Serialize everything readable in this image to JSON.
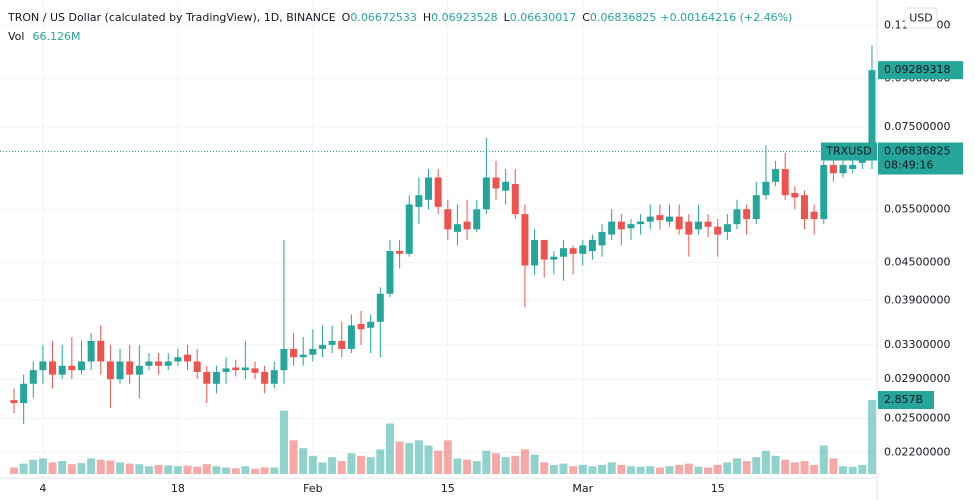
{
  "chart_data": {
    "type": "candlestick",
    "title": "TRON / US Dollar (calculated by TradingView), 1D, BINANCE",
    "ohlc_labels": [
      "O",
      "H",
      "L",
      "C"
    ],
    "ohlc_values": [
      0.06672533,
      0.06923528,
      0.06630017,
      0.06836825
    ],
    "change": "+0.00164216 (+2.46%)",
    "volume_title": "Vol",
    "volume_value": {
      "value": 66126000,
      "label": "66.126M"
    },
    "currency": "USD",
    "symbol": "TRXUSD",
    "last_price": 0.06836825,
    "countdown": "08:49:16",
    "marker_price": 0.09289318,
    "up_color": "#26a69a",
    "down_color": "#ef5350",
    "log_scale": true,
    "grid": true,
    "categories": [
      null,
      null,
      null,
      "4",
      null,
      null,
      null,
      null,
      null,
      null,
      null,
      null,
      null,
      null,
      null,
      null,
      null,
      "18",
      null,
      null,
      null,
      null,
      null,
      null,
      null,
      null,
      null,
      null,
      null,
      null,
      null,
      "Feb",
      null,
      null,
      null,
      null,
      null,
      null,
      null,
      null,
      null,
      null,
      null,
      null,
      null,
      "15",
      null,
      null,
      null,
      null,
      null,
      null,
      null,
      null,
      null,
      null,
      null,
      null,
      null,
      "Mar",
      null,
      null,
      null,
      null,
      null,
      null,
      null,
      null,
      null,
      null,
      null,
      null,
      null,
      "15",
      null,
      null,
      null,
      null,
      null,
      null,
      null,
      null,
      null,
      null,
      null,
      null,
      null,
      null,
      null,
      null
    ],
    "open": [
      0.0268,
      0.0265,
      0.0285,
      0.03,
      0.031,
      0.0295,
      0.0305,
      0.03,
      0.031,
      0.0335,
      0.031,
      0.029,
      0.031,
      0.0295,
      0.0305,
      0.031,
      0.0305,
      0.031,
      0.0318,
      0.031,
      0.0298,
      0.0285,
      0.0298,
      0.0303,
      0.03,
      0.0302,
      0.0298,
      0.0285,
      0.03,
      0.0325,
      0.0315,
      0.0318,
      0.0325,
      0.033,
      0.0335,
      0.0325,
      0.0357,
      0.0352,
      0.036,
      0.04,
      0.047,
      0.0465,
      0.0555,
      0.057,
      0.062,
      0.055,
      0.0505,
      0.0525,
      0.051,
      0.055,
      0.062,
      0.059,
      0.0605,
      0.054,
      0.0445,
      0.049,
      0.0455,
      0.046,
      0.0475,
      0.0465,
      0.047,
      0.048,
      0.05,
      0.0525,
      0.0512,
      0.052,
      0.0525,
      0.0538,
      0.0525,
      0.0535,
      0.0525,
      0.051,
      0.0525,
      0.0515,
      0.0505,
      0.052,
      0.055,
      0.053,
      0.058,
      0.061,
      0.064,
      0.0585,
      0.058,
      0.0545,
      0.053,
      0.065,
      0.063,
      0.064,
      0.0655,
      0.0675
    ],
    "high": [
      0.028,
      0.0295,
      0.031,
      0.033,
      0.0335,
      0.033,
      0.034,
      0.0335,
      0.0345,
      0.0355,
      0.033,
      0.0325,
      0.033,
      0.033,
      0.032,
      0.032,
      0.032,
      0.0325,
      0.033,
      0.0325,
      0.0305,
      0.0305,
      0.0315,
      0.0312,
      0.0335,
      0.031,
      0.0305,
      0.031,
      0.049,
      0.0345,
      0.034,
      0.035,
      0.0355,
      0.0355,
      0.036,
      0.037,
      0.0375,
      0.037,
      0.041,
      0.049,
      0.049,
      0.058,
      0.062,
      0.064,
      0.064,
      0.057,
      0.056,
      0.057,
      0.057,
      0.072,
      0.066,
      0.064,
      0.064,
      0.056,
      0.051,
      0.049,
      0.047,
      0.049,
      0.048,
      0.049,
      0.05,
      0.052,
      0.055,
      0.054,
      0.053,
      0.054,
      0.056,
      0.056,
      0.056,
      0.056,
      0.054,
      0.056,
      0.054,
      0.053,
      0.054,
      0.057,
      0.056,
      0.061,
      0.07,
      0.066,
      0.068,
      0.06,
      0.059,
      0.056,
      0.066,
      0.068,
      0.067,
      0.068,
      0.069,
      0.102
    ],
    "low": [
      0.0255,
      0.0245,
      0.027,
      0.0285,
      0.028,
      0.029,
      0.029,
      0.0295,
      0.03,
      0.0295,
      0.026,
      0.0285,
      0.0285,
      0.027,
      0.03,
      0.0295,
      0.03,
      0.0305,
      0.03,
      0.029,
      0.0265,
      0.0275,
      0.0285,
      0.0293,
      0.029,
      0.029,
      0.0275,
      0.028,
      0.0285,
      0.0305,
      0.0305,
      0.031,
      0.0315,
      0.032,
      0.0315,
      0.032,
      0.033,
      0.032,
      0.0315,
      0.0395,
      0.044,
      0.046,
      0.052,
      0.055,
      0.054,
      0.049,
      0.048,
      0.049,
      0.0505,
      0.054,
      0.057,
      0.056,
      0.053,
      0.038,
      0.043,
      0.0425,
      0.043,
      0.042,
      0.043,
      0.0445,
      0.0455,
      0.046,
      0.049,
      0.048,
      0.049,
      0.05,
      0.051,
      0.051,
      0.0515,
      0.05,
      0.046,
      0.05,
      0.0495,
      0.046,
      0.049,
      0.051,
      0.05,
      0.052,
      0.057,
      0.06,
      0.057,
      0.055,
      0.051,
      0.05,
      0.052,
      0.061,
      0.062,
      0.063,
      0.064,
      0.064
    ],
    "close": [
      0.0265,
      0.0285,
      0.03,
      0.031,
      0.0295,
      0.0305,
      0.03,
      0.031,
      0.0335,
      0.031,
      0.029,
      0.031,
      0.0295,
      0.0305,
      0.031,
      0.0305,
      0.031,
      0.0315,
      0.031,
      0.0298,
      0.0285,
      0.0298,
      0.0302,
      0.03,
      0.0303,
      0.0297,
      0.0285,
      0.03,
      0.0325,
      0.0315,
      0.0318,
      0.0325,
      0.033,
      0.0335,
      0.0325,
      0.0355,
      0.035,
      0.036,
      0.04,
      0.047,
      0.0465,
      0.056,
      0.058,
      0.062,
      0.0555,
      0.051,
      0.052,
      0.051,
      0.055,
      0.062,
      0.0595,
      0.061,
      0.054,
      0.0445,
      0.049,
      0.0455,
      0.046,
      0.0475,
      0.0465,
      0.048,
      0.049,
      0.0505,
      0.0525,
      0.051,
      0.052,
      0.0525,
      0.0535,
      0.0528,
      0.0535,
      0.051,
      0.05,
      0.0525,
      0.0515,
      0.05,
      0.052,
      0.055,
      0.053,
      0.058,
      0.061,
      0.064,
      0.058,
      0.0575,
      0.053,
      0.053,
      0.065,
      0.063,
      0.065,
      0.065,
      0.0675,
      0.0929
    ],
    "volume": [
      250000000,
      400000000,
      550000000,
      600000000,
      450000000,
      500000000,
      380000000,
      420000000,
      600000000,
      550000000,
      520000000,
      450000000,
      400000000,
      380000000,
      300000000,
      350000000,
      330000000,
      300000000,
      320000000,
      280000000,
      380000000,
      300000000,
      250000000,
      220000000,
      300000000,
      200000000,
      250000000,
      250000000,
      2450000000,
      1300000000,
      1000000000,
      700000000,
      450000000,
      650000000,
      500000000,
      800000000,
      700000000,
      650000000,
      950000000,
      1950000000,
      1250000000,
      1200000000,
      1300000000,
      1100000000,
      900000000,
      1300000000,
      600000000,
      550000000,
      500000000,
      900000000,
      800000000,
      650000000,
      700000000,
      950000000,
      750000000,
      450000000,
      350000000,
      400000000,
      300000000,
      350000000,
      300000000,
      350000000,
      450000000,
      350000000,
      300000000,
      280000000,
      300000000,
      250000000,
      300000000,
      350000000,
      400000000,
      280000000,
      250000000,
      350000000,
      450000000,
      600000000,
      500000000,
      650000000,
      900000000,
      700000000,
      550000000,
      450000000,
      500000000,
      350000000,
      1100000000,
      600000000,
      300000000,
      280000000,
      350000000,
      2857000000
    ],
    "ylim": [
      0.0191,
      0.121
    ],
    "yticks": [
      {
        "value": 0.022,
        "label": "0.02200000"
      },
      {
        "value": 0.025,
        "label": "0.02500000"
      },
      {
        "value": 0.029,
        "label": "0.02900000"
      },
      {
        "value": 0.033,
        "label": "0.03300000"
      },
      {
        "value": 0.039,
        "label": "0.03900000"
      },
      {
        "value": 0.045,
        "label": "0.04500000"
      },
      {
        "value": 0.055,
        "label": "0.05500000"
      },
      {
        "value": 0.075,
        "label": "0.07500000"
      },
      {
        "value": 0.09,
        "label": "0.09000000"
      },
      {
        "value": 0.11,
        "label": "0.11000000"
      }
    ],
    "y2lim": [
      0,
      18300000000
    ],
    "y2ticks": [
      {
        "value": 2857000000,
        "label": "2.857B"
      }
    ]
  }
}
